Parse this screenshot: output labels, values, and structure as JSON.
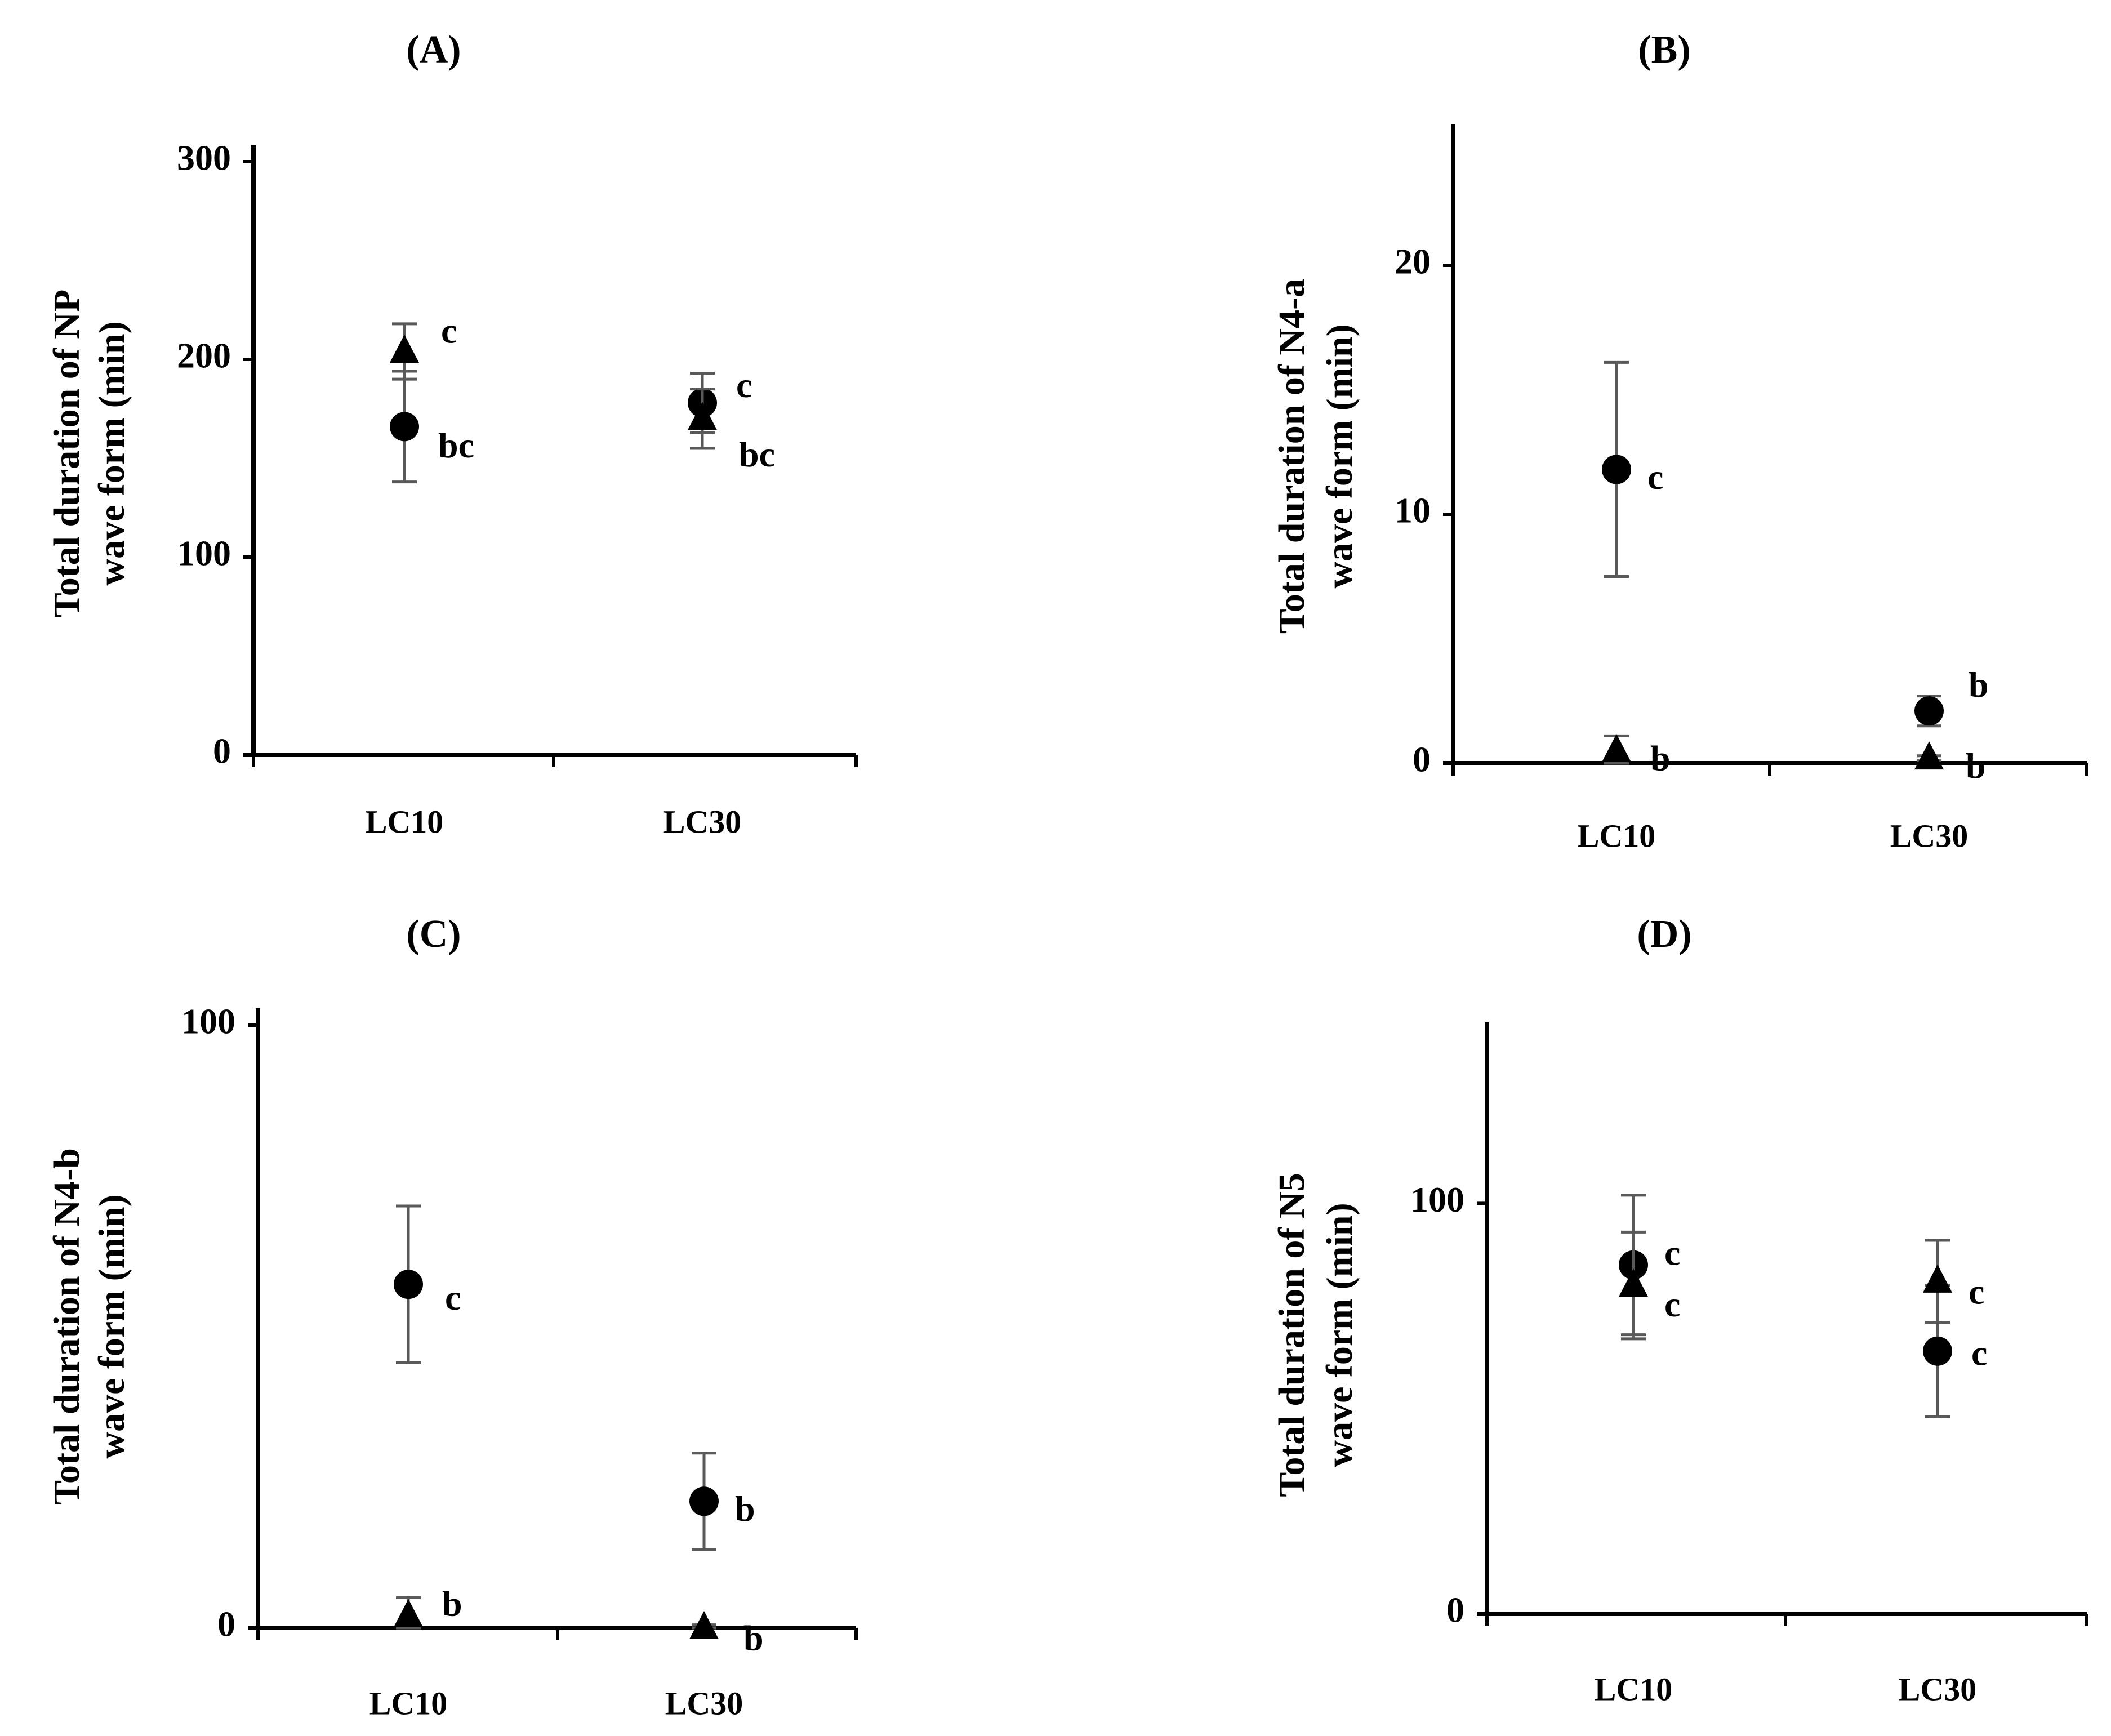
{
  "chart_data": [
    {
      "type": "scatter",
      "panel": "(A)",
      "ylabel_line1": "Total duration of NP",
      "ylabel_line2": "wave form (min)",
      "categories": [
        "LC10",
        "LC30"
      ],
      "ylim": [
        0,
        300
      ],
      "yticks": [
        "0",
        "100",
        "200",
        "300"
      ],
      "series": [
        {
          "name": "circle",
          "marker": "circle",
          "values": [
            166,
            178
          ],
          "errors": [
            28,
            15
          ],
          "labels": [
            "bc",
            "c"
          ]
        },
        {
          "name": "triangle",
          "marker": "triangle",
          "values": [
            204,
            170
          ],
          "errors": [
            14,
            15
          ],
          "labels": [
            "c",
            "bc"
          ]
        }
      ]
    },
    {
      "type": "scatter",
      "panel": "(B)",
      "ylabel_line1": "Total duration of N4-a",
      "ylabel_line2": "wave form (min)",
      "categories": [
        "LC10",
        "LC30"
      ],
      "ylim": [
        0,
        25
      ],
      "yticks": [
        "0",
        "10",
        "20"
      ],
      "series": [
        {
          "name": "circle",
          "marker": "circle",
          "values": [
            11.8,
            2.1
          ],
          "errors": [
            4.3,
            0.6
          ],
          "labels": [
            "c",
            "b"
          ]
        },
        {
          "name": "triangle",
          "marker": "triangle",
          "values": [
            0.5,
            0.2
          ],
          "errors": [
            0.6,
            0.1
          ],
          "labels": [
            "b",
            "b"
          ]
        }
      ]
    },
    {
      "type": "scatter",
      "panel": "(C)",
      "ylabel_line1": "Total duration of N4-b",
      "ylabel_line2": "wave form (min)",
      "categories": [
        "LC10",
        "LC30"
      ],
      "ylim": [
        0,
        100
      ],
      "yticks": [
        "0",
        "100"
      ],
      "series": [
        {
          "name": "circle",
          "marker": "circle",
          "values": [
            57,
            21
          ],
          "errors": [
            13,
            8
          ],
          "labels": [
            "c",
            "b"
          ]
        },
        {
          "name": "triangle",
          "marker": "triangle",
          "values": [
            2,
            0
          ],
          "errors": [
            3,
            0.5
          ],
          "labels": [
            "b",
            "b"
          ]
        }
      ]
    },
    {
      "type": "scatter",
      "panel": "(D)",
      "ylabel_line1": "Total duration of N5",
      "ylabel_line2": "wave form (min)",
      "categories": [
        "LC10",
        "LC30"
      ],
      "ylim": [
        0,
        140
      ],
      "yticks": [
        "0",
        "100"
      ],
      "series": [
        {
          "name": "circle",
          "marker": "circle",
          "values": [
            85,
            64
          ],
          "errors": [
            17,
            16
          ],
          "labels": [
            "c",
            "c"
          ]
        },
        {
          "name": "triangle",
          "marker": "triangle",
          "values": [
            80,
            81
          ],
          "errors": [
            13,
            10
          ],
          "labels": [
            "c",
            "c"
          ]
        }
      ]
    }
  ]
}
